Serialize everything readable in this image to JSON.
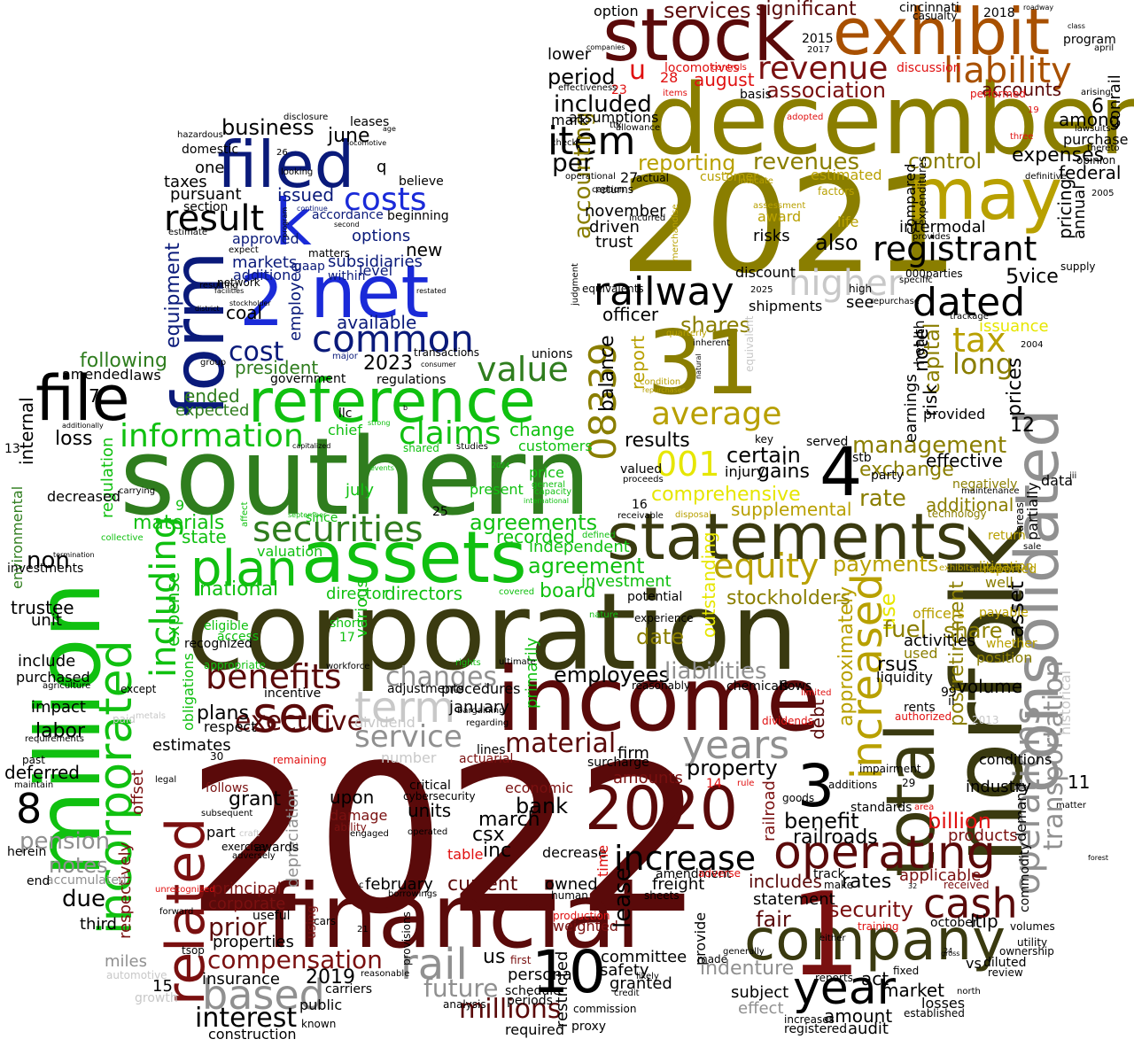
{
  "colors": {
    "background": "#ffffff",
    "navy": "#0a1a7a",
    "blue": "#1a2ad8",
    "green": "#10c010",
    "dark_green": "#2f7d1e",
    "olive_dark": "#3a3a10",
    "olive": "#8a7e00",
    "gold": "#b8a000",
    "yellow": "#e6e600",
    "orange_brown": "#a85000",
    "maroon": "#5a0a0a",
    "dark_red": "#7a1010",
    "red": "#e01010",
    "gray": "#909090",
    "light_gray": "#c8c8c8",
    "black": "#000000"
  },
  "words": {
    "2022": "2022",
    "2021": "2021",
    "southern": "southern",
    "corporation": "corporation",
    "december": "december",
    "norfolk": "norfolk",
    "income": "income",
    "financial": "financial",
    "million": "million",
    "stock": "stock",
    "exhibit": "exhibit",
    "statements": "statements",
    "consolidated": "consolidated",
    "assets": "assets",
    "filed": "filed",
    "form": "form",
    "net": "net",
    "k": "k",
    "2": "2",
    "31": "31",
    "may": "may",
    "file": "file",
    "reference": "reference",
    "company": "company",
    "total": "total",
    "operating": "operating",
    "incorporated": "incorporated",
    "related": "related",
    "2020": "2020",
    "plan": "plan",
    "sec": "sec",
    "years": "years",
    "year": "year",
    "based": "based",
    "1": "1",
    "3": "3",
    "4": "4",
    "10": "10",
    "8": "8",
    "liability": "liability",
    "revenue": "revenue",
    "registrant": "registrant",
    "dated": "dated",
    "railway": "railway",
    "item": "item",
    "common": "common",
    "costs": "costs",
    "result": "result",
    "securities": "securities",
    "information": "information",
    "value": "value",
    "claims": "claims",
    "increased": "increased",
    "operations": "operations",
    "transportation": "transportation",
    "equity": "equity",
    "benefits": "benefits",
    "executive": "executive",
    "term": "term",
    "rail": "rail",
    "cash": "cash",
    "average": "average",
    "higher": "higher",
    "tax": "tax",
    "08339": "08339",
    "001": "001",
    "increase": "increase",
    "including": "including",
    "interest": "interest",
    "compensation": "compensation",
    "material": "material",
    "service": "service",
    "changes": "changes",
    "billion": "billion",
    "millions": "millions",
    "future": "future",
    "security": "security",
    "management": "management",
    "control": "control",
    "reporting": "reporting",
    "revenues": "revenues",
    "accounting": "accounting",
    "association": "association",
    "services": "services",
    "significant": "significant",
    "accounts": "accounts",
    "included": "included",
    "period": "period",
    "per": "per",
    "u": "u",
    "august": "august",
    "expenses": "expenses",
    "federal": "federal",
    "among": "among",
    "6": "6",
    "conrail": "conrail",
    "also": "also",
    "officer": "officer",
    "shares": "shares",
    "report": "report",
    "balance": "balance",
    "results": "results",
    "comprehensive": "comprehensive",
    "supplemental": "supplemental",
    "payments": "payments",
    "stockholders": "stockholders",
    "outstanding": "outstanding",
    "approximately": "approximately",
    "certain": "certain",
    "gains": "gains",
    "rate": "rate",
    "exchange": "exchange",
    "capital": "capital",
    "long": "long",
    "note": "note",
    "earnings": "earnings",
    "risk": "risk",
    "effective": "effective",
    "additional": "additional",
    "postretirement": "postretirement",
    "prices": "prices",
    "12": "12",
    "asset": "asset",
    "use": "use",
    "fuel": "fuel",
    "share": "share",
    "date": "date",
    "primarily": "primarily",
    "agreement": "agreement",
    "agreements": "agreements",
    "recorded": "recorded",
    "independent": "independent",
    "investment": "investment",
    "board": "board",
    "directors": "directors",
    "director": "director",
    "national": "national",
    "materials": "materials",
    "state": "state",
    "change": "change",
    "customers": "customers",
    "price": "price",
    "business": "business",
    "june": "june",
    "issued": "issued",
    "accordance": "accordance",
    "options": "options",
    "new": "new",
    "subsidiaries": "subsidiaries",
    "available": "available",
    "president": "president",
    "2023": "2023",
    "following": "following",
    "ended": "ended",
    "expected": "expected",
    "loss": "loss",
    "internal": "internal",
    "equipment": "equipment",
    "cost": "cost",
    "coal": "coal",
    "employee": "employee",
    "regulation": "regulation",
    "environmental": "environmental",
    "non": "non",
    "trustee": "trustee",
    "unit": "unit",
    "include": "include",
    "purchased": "purchased",
    "impact": "impact",
    "labor": "labor",
    "deferred": "deferred",
    "pension": "pension",
    "notes": "notes",
    "due": "due",
    "third": "third",
    "miles": "miles",
    "15": "15",
    "expense": "expense",
    "obligations": "obligations",
    "plans": "plans",
    "respect": "respect",
    "estimates": "estimates",
    "grant": "grant",
    "prior": "prior",
    "principal": "principal",
    "corporate": "corporate",
    "properties": "properties",
    "insurance": "insurance",
    "2019": "2019",
    "public": "public",
    "construction": "construction",
    "depreciation": "depreciation",
    "respectively": "respectively",
    "offset": "offset",
    "awards": "awards",
    "part": "part",
    "upon": "upon",
    "units": "units",
    "inc": "inc",
    "csx": "csx",
    "march": "march",
    "bank": "bank",
    "current": "current",
    "february": "february",
    "owned": "owned",
    "amounts": "amounts",
    "weighted": "weighted",
    "personal": "personal",
    "us": "us",
    "restricted": "restricted",
    "committee": "committee",
    "granted": "granted",
    "safety": "safety",
    "lease": "lease",
    "freight": "freight",
    "provide": "provide",
    "includes": "includes",
    "statement": "statement",
    "fair": "fair",
    "indenture": "indenture",
    "subject": "subject",
    "effect": "effect",
    "amount": "amount",
    "audit": "audit",
    "registered": "registered",
    "market": "market",
    "losses": "losses",
    "act": "act",
    "vs": "vs",
    "ltip": "ltip",
    "benefit": "benefit",
    "railroads": "railroads",
    "rates": "rates",
    "applicable": "applicable",
    "products": "products",
    "railroad": "railroad",
    "debt": "debt",
    "property": "property",
    "employees": "employees",
    "liabilities": "liabilities",
    "surcharge": "surcharge",
    "firm": "firm",
    "january": "january",
    "procedures": "procedures",
    "rsus": "rsus",
    "liquidity": "liquidity",
    "volume": "volume",
    "activities": "activities",
    "used": "used",
    "officers": "officers",
    "industry": "industry",
    "conditions": "conditions",
    "11": "11",
    "demand": "demand",
    "historical": "historical",
    "data": "data",
    "partially": "partially",
    "areas": "areas",
    "position": "position",
    "well": "well",
    "negatively": "negatively",
    "provided": "provided",
    "issuance": "issuance",
    "5": "5",
    "vice": "vice",
    "pricing": "pricing",
    "annual": "annual",
    "compared": "compared",
    "expenditures": "expenditures",
    "intermodal": "intermodal",
    "estimated": "estimated",
    "life": "life",
    "award": "award",
    "risks": "risks",
    "shipments": "shipments",
    "discount": "discount",
    "november": "november",
    "driven": "driven",
    "trust": "trust",
    "purchase": "purchase",
    "option": "option",
    "lower": "lower",
    "assumptions": "assumptions",
    "mark": "mark",
    "cincinnati": "cincinnati",
    "casualty": "casualty",
    "2018": "2018",
    "program": "program",
    "2015": "2015",
    "28": "28",
    "locomotives": "locomotives",
    "discussion": "discussion",
    "performed": "performed",
    "23": "23",
    "actual": "actual",
    "customer": "customer",
    "27": "27",
    "pursuant": "pursuant",
    "taxes": "taxes",
    "section": "section",
    "one": "one",
    "domestic": "domestic",
    "approved": "approved",
    "markets": "markets",
    "addition": "addition",
    "gaap": "gaap",
    "within": "within",
    "level": "level",
    "matters": "matters",
    "network": "network",
    "transactions": "transactions",
    "regulations": "regulations",
    "unions": "unions",
    "laws": "laws",
    "amended": "amended",
    "government": "government",
    "chief": "chief",
    "llc": "llc",
    "shared": "shared",
    "leases": "leases",
    "q": "q",
    "believe": "believe",
    "beginning": "beginning",
    "7": "7",
    "13": "13",
    "decreased": "decreased",
    "9": "9",
    "july": "july",
    "present": "present",
    "25": "25",
    "valuation": "valuation",
    "since": "since",
    "17": "17",
    "short": "short",
    "various": "various",
    "eligible": "eligible",
    "access": "access",
    "appropriate": "appropriate",
    "incentive": "incentive",
    "adjustments": "adjustments",
    "number": "number",
    "dividend": "dividend",
    "lines": "lines",
    "actuarial": "actuarial",
    "critical": "critical",
    "cybersecurity": "cybersecurity",
    "economic": "economic",
    "damage": "damage",
    "ability": "ability",
    "follows": "follows",
    "table": "table",
    "decrease": "decrease",
    "production": "production",
    "14": "14",
    "time": "time",
    "reasonably": "reasonably",
    "chemicals": "chemicals",
    "flows": "flows",
    "potential": "potential",
    "experience": "experience",
    "valued": "valued",
    "16": "16",
    "served": "served",
    "stb": "stb",
    "party": "party",
    "injury": "injury",
    "key": "key",
    "see": "see",
    "high": "high",
    "health": "health",
    "return": "return",
    "litigation": "litigation",
    "reported": "reported",
    "payable": "payable",
    "whether": "whether",
    "rents": "rents",
    "authorized": "authorized",
    "99": "99",
    "ii": "ii",
    "29": "29",
    "additions": "additions",
    "standards": "standards",
    "impairment": "impairment",
    "goods": "goods",
    "track": "track",
    "make": "make",
    "received": "received",
    "commodity": "commodity",
    "volumes": "volumes",
    "diluted": "diluted",
    "review": "review",
    "utility": "utility",
    "ownership": "ownership",
    "october": "october",
    "fixed": "fixed",
    "established": "established",
    "increases": "increases",
    "commission": "commission",
    "schedule": "schedule",
    "periods": "periods",
    "required": "required",
    "proxy": "proxy",
    "analysis": "analysis",
    "carriers": "carriers",
    "known": "known",
    "growth": "growth",
    "automotive": "automotive",
    "investments": "investments",
    "herein": "herein",
    "accumulated": "accumulated",
    "end": "end",
    "past": "past",
    "maintain": "maintain",
    "requirements": "requirements",
    "workforce": "workforce",
    "except": "except",
    "agriculture": "agriculture",
    "metals": "metals",
    "paid": "paid",
    "legal": "legal",
    "useful": "useful",
    "forward": "forward",
    "unrecognized": "unrecognized",
    "adversely": "adversely",
    "exercise": "exercise",
    "subsequent": "subsequent",
    "craft": "craft",
    "remaining": "remaining",
    "cars": "cars",
    "using": "using",
    "30": "30",
    "21": "21",
    "provisions": "provisions",
    "borrowings": "borrowings",
    "operated": "operated",
    "engaged": "engaged",
    "human": "human",
    "first": "first",
    "credit": "credit",
    "likely": "likely",
    "generally": "generally",
    "made": "made",
    "amendment": "amendment",
    "sheets": "sheets",
    "adverse": "adverse",
    "rule": "rule",
    "dividends": "dividends",
    "limited": "limited",
    "training": "training",
    "either": "either",
    "reports": "reports",
    "area": "area",
    "north": "north",
    "tsop": "tsop",
    "reasonable": "reasonable",
    "regarding": "regarding",
    "bargaining": "bargaining",
    "rights": "rights",
    "ultimate": "ultimate",
    "covered": "covered",
    "nature": "nature",
    "defined": "defined",
    "receivable": "receivable",
    "proceeds": "proceeds",
    "disposal": "disposal",
    "maintenance": "maintenance",
    "technology": "technology",
    "iii": "iii",
    "sale": "sale",
    "matter": "matter",
    "forest": "forest",
    "2013": "2013",
    "2004": "2004",
    "thereto": "thereto",
    "opinion": "opinion",
    "2005": "2005",
    "supply": "supply",
    "provides": "provides",
    "parties": "parties",
    "000": "000",
    "specific": "specific",
    "repurchase": "repurchase",
    "trackage": "trackage",
    "2025": "2025",
    "judgment": "judgment",
    "returns": "returns",
    "check": "check",
    "effectiveness": "effectiveness",
    "companies": "companies",
    "2017": "2017",
    "controls": "controls",
    "items": "items",
    "basis": "basis",
    "adopted": "adopted",
    "ttx": "ttx",
    "allowance": "allowance",
    "incurred": "incurred",
    "equivalents": "equivalents",
    "definitive": "definitive",
    "caption": "caption",
    "operational": "operational",
    "hazardous": "hazardous",
    "disclosure": "disclosure",
    "age": "age",
    "locomotive": "locomotive",
    "26": "26",
    "looking": "looking",
    "estimate": "estimate",
    "expect": "expect",
    "resulting": "resulting",
    "facilities": "facilities",
    "stockholder": "stockholder",
    "district": "district",
    "group": "group",
    "major": "major",
    "consumer": "consumer",
    "restated": "restated",
    "additionally": "additionally",
    "capitalized": "capitalized",
    "studies": "studies",
    "strong": "strong",
    "events": "events",
    "2024": "2024",
    "general": "general",
    "capacity": "capacity",
    "international": "international",
    "affect": "affect",
    "september": "september",
    "carrying": "carrying",
    "collective": "collective",
    "termination": "termination",
    "merchandise": "merchandise",
    "natural": "natural",
    "condition": "condition",
    "repurchases": "repurchases",
    "equivalent": "equivalent",
    "factors": "factors",
    "indicate": "indicate",
    "assessment": "assessment",
    "inherent": "inherent",
    "quarterly": "quarterly",
    "arising": "arising",
    "lawsuits": "lawsuits",
    "three": "three",
    "class": "class",
    "april": "april",
    "roadway": "roadway",
    "19": "19",
    "b": "b",
    "c": "c",
    "24": "24",
    "32": "32",
    "gross": "gross",
    "recognized": "recognized",
    "exhibits": "exhibits",
    "interim": "interim",
    "continue": "continue",
    "second": "second",
    "program2": "program"
  }
}
